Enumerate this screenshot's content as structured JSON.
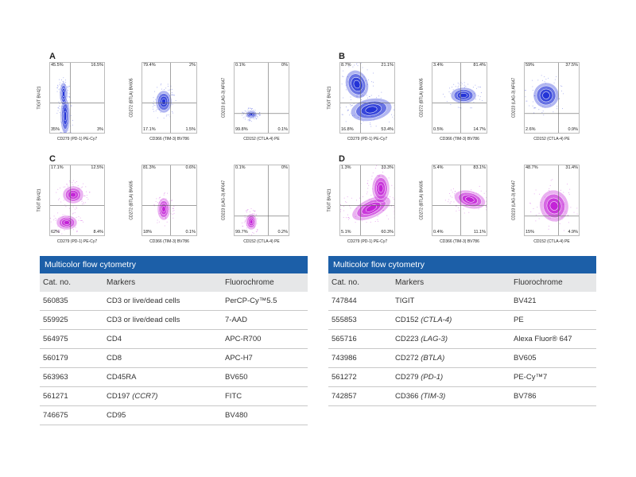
{
  "chart_data": [
    {
      "panel": "A",
      "type": "scatter",
      "plots": [
        {
          "ylabel": "TIGIT BV421",
          "xlabel": "CD279 (PD-1) PE-Cy7",
          "q": [
            "45.5%",
            "16.5%",
            "35%",
            "3%"
          ],
          "color": "#1f2fd6"
        },
        {
          "ylabel": "CD272 (BTLA) BV605",
          "xlabel": "CD366 (TIM-3) BV786",
          "q": [
            "79.4%",
            "2%",
            "17.1%",
            "1.5%"
          ],
          "color": "#1f2fd6"
        },
        {
          "ylabel": "CD223 (LAG-3) AF647",
          "xlabel": "CD152 (CTLA-4) PE",
          "q": [
            "0.1%",
            "0%",
            "99.8%",
            "0.1%"
          ],
          "color": "#1f2fd6"
        }
      ]
    },
    {
      "panel": "B",
      "type": "scatter",
      "plots": [
        {
          "ylabel": "TIGIT BV421",
          "xlabel": "CD279 (PD-1) PE-Cy7",
          "q": [
            "8.7%",
            "21.1%",
            "16.8%",
            "53.4%"
          ],
          "color": "#1f2fd6"
        },
        {
          "ylabel": "CD272 (BTLA) BV605",
          "xlabel": "CD366 (TIM-3) BV786",
          "q": [
            "3.4%",
            "81.4%",
            "0.5%",
            "14.7%"
          ],
          "color": "#1f2fd6"
        },
        {
          "ylabel": "CD223 (LAG-3) AF647",
          "xlabel": "CD152 (CTLA-4) PE",
          "q": [
            "59%",
            "37.5%",
            "2.6%",
            "0.9%"
          ],
          "color": "#1f2fd6"
        }
      ]
    },
    {
      "panel": "C",
      "type": "scatter",
      "plots": [
        {
          "ylabel": "TIGIT BV421",
          "xlabel": "CD279 (PD-1) PE-Cy7",
          "q": [
            "17.1%",
            "12.5%",
            "62%",
            "8.4%"
          ],
          "color": "#c21fd6"
        },
        {
          "ylabel": "CD272 (BTLA) BV605",
          "xlabel": "CD366 (TIM-3) BV786",
          "q": [
            "81.3%",
            "0.6%",
            "18%",
            "0.1%"
          ],
          "color": "#c21fd6"
        },
        {
          "ylabel": "CD223 (LAG-3) AF647",
          "xlabel": "CD152 (CTLA-4) PE",
          "q": [
            "0.1%",
            "0%",
            "99.7%",
            "0.2%"
          ],
          "color": "#c21fd6"
        }
      ]
    },
    {
      "panel": "D",
      "type": "scatter",
      "plots": [
        {
          "ylabel": "TIGIT BV421",
          "xlabel": "CD279 (PD-1) PE-Cy7",
          "q": [
            "1.3%",
            "33.3%",
            "5.1%",
            "60.3%"
          ],
          "color": "#c21fd6"
        },
        {
          "ylabel": "CD272 (BTLA) BV605",
          "xlabel": "CD366 (TIM-3) BV786",
          "q": [
            "5.4%",
            "83.1%",
            "0.4%",
            "11.1%"
          ],
          "color": "#c21fd6"
        },
        {
          "ylabel": "CD223 (LAG-3) AF647",
          "xlabel": "CD152 (CTLA-4) PE",
          "q": [
            "48.7%",
            "31.4%",
            "15%",
            "4.9%"
          ],
          "color": "#c21fd6"
        }
      ]
    }
  ],
  "tables": [
    {
      "title": "Multicolor flow cytometry",
      "headers": [
        "Cat. no.",
        "Markers",
        "Fluorochrome"
      ],
      "rows": [
        [
          "560835",
          "CD3 or live/dead cells",
          "PerCP-Cy™5.5"
        ],
        [
          "559925",
          "CD3 or live/dead cells",
          "7-AAD"
        ],
        [
          "564975",
          "CD4",
          "APC-R700"
        ],
        [
          "560179",
          "CD8",
          "APC-H7"
        ],
        [
          "563963",
          "CD45RA",
          "BV650"
        ],
        [
          "561271",
          "CD197 (CCR7)",
          "FITC"
        ],
        [
          "746675",
          "CD95",
          "BV480"
        ]
      ]
    },
    {
      "title": "Multicolor flow cytometry",
      "headers": [
        "Cat. no.",
        "Markers",
        "Fluorochrome"
      ],
      "rows": [
        [
          "747844",
          "TIGIT",
          "BV421"
        ],
        [
          "555853",
          "CD152 (CTLA-4)",
          "PE"
        ],
        [
          "565716",
          "CD223 (LAG-3)",
          "Alexa Fluor® 647"
        ],
        [
          "743986",
          "CD272 (BTLA)",
          "BV605"
        ],
        [
          "561272",
          "CD279 (PD-1)",
          "PE-Cy™7"
        ],
        [
          "742857",
          "CD366 (TIM-3)",
          "BV786"
        ]
      ]
    }
  ]
}
